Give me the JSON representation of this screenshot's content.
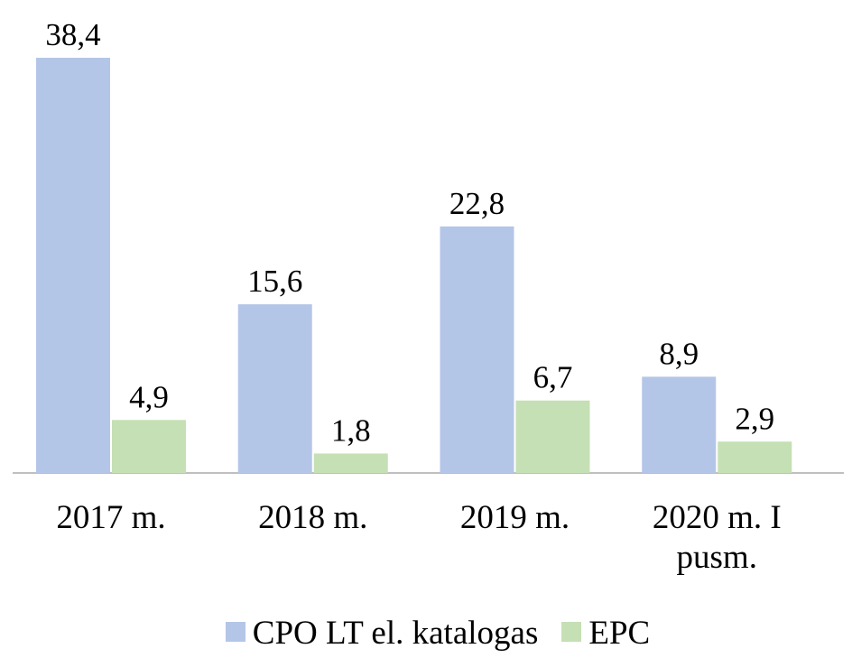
{
  "chart_data": {
    "type": "bar",
    "categories": [
      "2017 m.",
      "2018 m.",
      "2019 m.",
      "2020 m. I pusm."
    ],
    "series": [
      {
        "name": "CPO LT el. katalogas",
        "color": "#b4c6e7",
        "values": [
          38.4,
          15.6,
          22.8,
          8.9
        ],
        "value_labels": [
          "38,4",
          "15,6",
          "22,8",
          "8,9"
        ]
      },
      {
        "name": "EPC",
        "color": "#c5e0b4",
        "values": [
          4.9,
          1.8,
          6.7,
          2.9
        ],
        "value_labels": [
          "4,9",
          "1,8",
          "6,7",
          "2,9"
        ]
      }
    ],
    "legend": "bottom"
  }
}
